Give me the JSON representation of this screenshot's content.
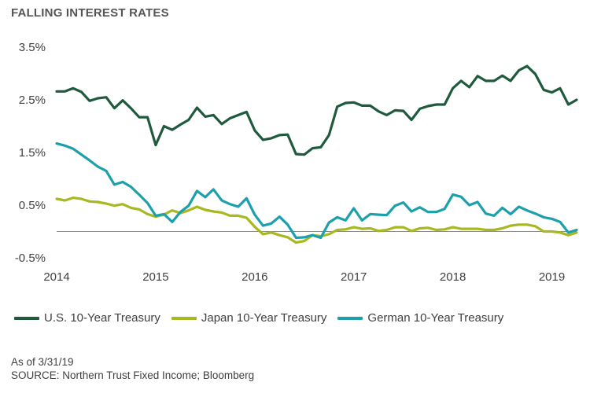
{
  "title": "FALLING INTEREST RATES",
  "footer": {
    "as_of": "As of 3/31/19",
    "source": "SOURCE: Northern Trust Fixed Income; Bloomberg"
  },
  "chart_data": {
    "type": "line",
    "title": "FALLING INTEREST RATES",
    "xlabel": "",
    "ylabel": "",
    "xlim": [
      2014.0,
      2019.25
    ],
    "ylim": [
      -0.5,
      3.5
    ],
    "x_ticks": [
      2014,
      2015,
      2016,
      2017,
      2018,
      2019
    ],
    "x_tick_labels": [
      "2014",
      "2015",
      "2016",
      "2017",
      "2018",
      "2019"
    ],
    "y_ticks": [
      -0.5,
      0.5,
      1.5,
      2.5,
      3.5
    ],
    "y_tick_labels": [
      "-0.5%",
      "0.5%",
      "1.5%",
      "2.5%",
      "3.5%"
    ],
    "zero_line": true,
    "grid": false,
    "legend_position": "bottom",
    "x": [
      2014.0,
      2014.083,
      2014.167,
      2014.25,
      2014.333,
      2014.417,
      2014.5,
      2014.583,
      2014.667,
      2014.75,
      2014.833,
      2014.917,
      2015.0,
      2015.083,
      2015.167,
      2015.25,
      2015.333,
      2015.417,
      2015.5,
      2015.583,
      2015.667,
      2015.75,
      2015.833,
      2015.917,
      2016.0,
      2016.083,
      2016.167,
      2016.25,
      2016.333,
      2016.417,
      2016.5,
      2016.583,
      2016.667,
      2016.75,
      2016.833,
      2016.917,
      2017.0,
      2017.083,
      2017.167,
      2017.25,
      2017.333,
      2017.417,
      2017.5,
      2017.583,
      2017.667,
      2017.75,
      2017.833,
      2017.917,
      2018.0,
      2018.083,
      2018.167,
      2018.25,
      2018.333,
      2018.417,
      2018.5,
      2018.583,
      2018.667,
      2018.75,
      2018.833,
      2018.917,
      2019.0,
      2019.083,
      2019.167,
      2019.25
    ],
    "series": [
      {
        "name": "U.S. 10-Year Treasury",
        "color": "#1f5a3c",
        "values": [
          2.66,
          2.66,
          2.72,
          2.65,
          2.48,
          2.53,
          2.55,
          2.34,
          2.49,
          2.34,
          2.17,
          2.17,
          1.64,
          2.0,
          1.93,
          2.03,
          2.12,
          2.35,
          2.18,
          2.21,
          2.04,
          2.15,
          2.21,
          2.27,
          1.92,
          1.74,
          1.77,
          1.83,
          1.84,
          1.47,
          1.46,
          1.58,
          1.6,
          1.83,
          2.37,
          2.44,
          2.45,
          2.39,
          2.39,
          2.28,
          2.21,
          2.3,
          2.29,
          2.12,
          2.33,
          2.38,
          2.41,
          2.41,
          2.72,
          2.86,
          2.74,
          2.95,
          2.86,
          2.86,
          2.96,
          2.86,
          3.06,
          3.14,
          2.99,
          2.69,
          2.64,
          2.72,
          2.41,
          2.5
        ]
      },
      {
        "name": "Japan 10-Year Treasury",
        "color": "#a8b820",
        "values": [
          0.62,
          0.59,
          0.64,
          0.62,
          0.57,
          0.56,
          0.53,
          0.49,
          0.52,
          0.45,
          0.42,
          0.33,
          0.28,
          0.32,
          0.4,
          0.35,
          0.4,
          0.47,
          0.41,
          0.38,
          0.36,
          0.3,
          0.3,
          0.26,
          0.09,
          -0.05,
          -0.02,
          -0.07,
          -0.11,
          -0.21,
          -0.18,
          -0.07,
          -0.09,
          -0.05,
          0.03,
          0.04,
          0.08,
          0.05,
          0.06,
          0.01,
          0.03,
          0.08,
          0.08,
          0.01,
          0.06,
          0.07,
          0.03,
          0.04,
          0.08,
          0.05,
          0.05,
          0.05,
          0.03,
          0.03,
          0.06,
          0.11,
          0.13,
          0.13,
          0.1,
          0.0,
          0.0,
          -0.02,
          -0.07,
          -0.02
        ]
      },
      {
        "name": "German 10-Year Treasury",
        "color": "#1ba0ac",
        "values": [
          1.67,
          1.63,
          1.57,
          1.46,
          1.35,
          1.23,
          1.15,
          0.89,
          0.94,
          0.85,
          0.7,
          0.54,
          0.3,
          0.33,
          0.18,
          0.37,
          0.49,
          0.77,
          0.65,
          0.8,
          0.59,
          0.52,
          0.47,
          0.63,
          0.32,
          0.11,
          0.15,
          0.28,
          0.13,
          -0.12,
          -0.11,
          -0.07,
          -0.12,
          0.17,
          0.27,
          0.21,
          0.44,
          0.21,
          0.33,
          0.32,
          0.31,
          0.49,
          0.55,
          0.38,
          0.46,
          0.37,
          0.37,
          0.43,
          0.7,
          0.66,
          0.5,
          0.56,
          0.34,
          0.3,
          0.45,
          0.33,
          0.47,
          0.4,
          0.34,
          0.27,
          0.24,
          0.18,
          -0.02,
          0.03
        ]
      }
    ]
  }
}
